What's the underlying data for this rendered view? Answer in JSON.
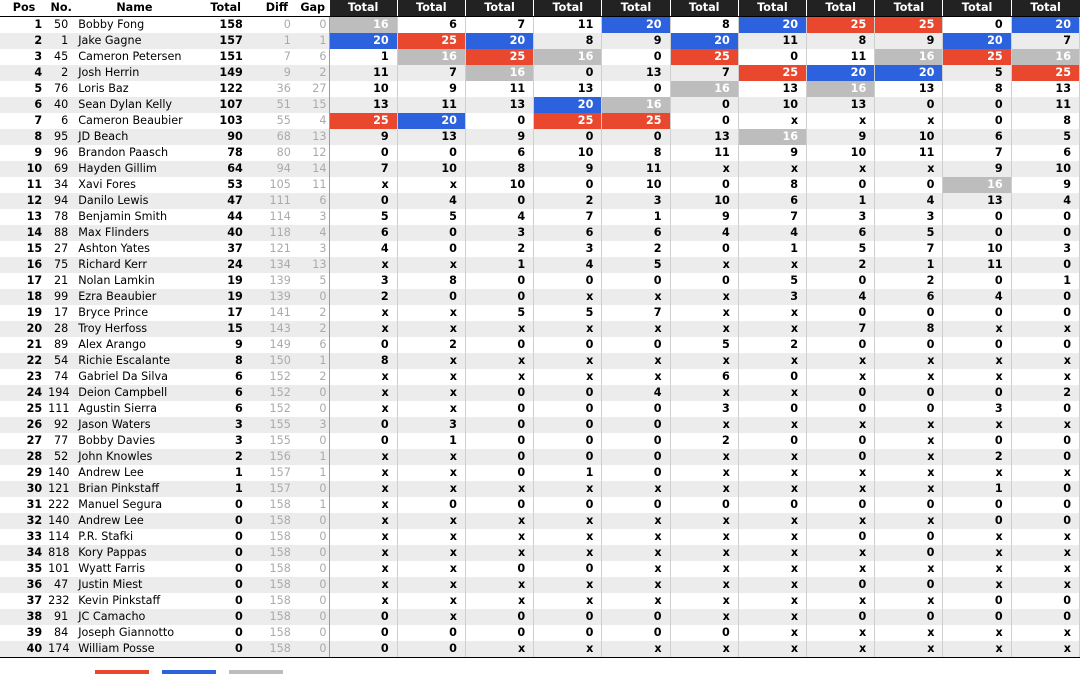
{
  "headers": {
    "pos": "Pos",
    "num": "No.",
    "name": "Name",
    "total": "Total",
    "diff": "Diff",
    "gap": "Gap",
    "rounds": [
      "Total",
      "Total",
      "Total",
      "Total",
      "Total",
      "Total",
      "Total",
      "Total",
      "Total",
      "Total",
      "Total"
    ]
  },
  "colors": {
    "first": "#e9482e",
    "second": "#2d62de",
    "third": "#bdbdbd"
  },
  "riders": [
    {
      "pos": "1",
      "num": "50",
      "name": "Bobby Fong",
      "total": "158",
      "diff": "0",
      "gap": "0",
      "rounds": [
        "16",
        "6",
        "7",
        "11",
        "20",
        "8",
        "20",
        "25",
        "25",
        "0",
        "20"
      ]
    },
    {
      "pos": "2",
      "num": "1",
      "name": "Jake Gagne",
      "total": "157",
      "diff": "1",
      "gap": "1",
      "rounds": [
        "20",
        "25",
        "20",
        "8",
        "9",
        "20",
        "11",
        "8",
        "9",
        "20",
        "7"
      ]
    },
    {
      "pos": "3",
      "num": "45",
      "name": "Cameron Petersen",
      "total": "151",
      "diff": "7",
      "gap": "6",
      "rounds": [
        "1",
        "16",
        "25",
        "16",
        "0",
        "25",
        "0",
        "11",
        "16",
        "25",
        "16"
      ]
    },
    {
      "pos": "4",
      "num": "2",
      "name": "Josh Herrin",
      "total": "149",
      "diff": "9",
      "gap": "2",
      "rounds": [
        "11",
        "7",
        "16",
        "0",
        "13",
        "7",
        "25",
        "20",
        "20",
        "5",
        "25"
      ]
    },
    {
      "pos": "5",
      "num": "76",
      "name": "Loris Baz",
      "total": "122",
      "diff": "36",
      "gap": "27",
      "rounds": [
        "10",
        "9",
        "11",
        "13",
        "0",
        "16",
        "13",
        "16",
        "13",
        "8",
        "13"
      ]
    },
    {
      "pos": "6",
      "num": "40",
      "name": "Sean Dylan Kelly",
      "total": "107",
      "diff": "51",
      "gap": "15",
      "rounds": [
        "13",
        "11",
        "13",
        "20",
        "16",
        "0",
        "10",
        "13",
        "0",
        "0",
        "11"
      ]
    },
    {
      "pos": "7",
      "num": "6",
      "name": "Cameron Beaubier",
      "total": "103",
      "diff": "55",
      "gap": "4",
      "rounds": [
        "25",
        "20",
        "0",
        "25",
        "25",
        "0",
        "x",
        "x",
        "x",
        "0",
        "8"
      ]
    },
    {
      "pos": "8",
      "num": "95",
      "name": "JD Beach",
      "total": "90",
      "diff": "68",
      "gap": "13",
      "rounds": [
        "9",
        "13",
        "9",
        "0",
        "0",
        "13",
        "16",
        "9",
        "10",
        "6",
        "5"
      ]
    },
    {
      "pos": "9",
      "num": "96",
      "name": "Brandon Paasch",
      "total": "78",
      "diff": "80",
      "gap": "12",
      "rounds": [
        "0",
        "0",
        "6",
        "10",
        "8",
        "11",
        "9",
        "10",
        "11",
        "7",
        "6"
      ]
    },
    {
      "pos": "10",
      "num": "69",
      "name": "Hayden Gillim",
      "total": "64",
      "diff": "94",
      "gap": "14",
      "rounds": [
        "7",
        "10",
        "8",
        "9",
        "11",
        "x",
        "x",
        "x",
        "x",
        "9",
        "10"
      ]
    },
    {
      "pos": "11",
      "num": "34",
      "name": "Xavi Fores",
      "total": "53",
      "diff": "105",
      "gap": "11",
      "rounds": [
        "x",
        "x",
        "10",
        "0",
        "10",
        "0",
        "8",
        "0",
        "0",
        "16",
        "9"
      ]
    },
    {
      "pos": "12",
      "num": "94",
      "name": "Danilo Lewis",
      "total": "47",
      "diff": "111",
      "gap": "6",
      "rounds": [
        "0",
        "4",
        "0",
        "2",
        "3",
        "10",
        "6",
        "1",
        "4",
        "13",
        "4"
      ]
    },
    {
      "pos": "13",
      "num": "78",
      "name": "Benjamin Smith",
      "total": "44",
      "diff": "114",
      "gap": "3",
      "rounds": [
        "5",
        "5",
        "4",
        "7",
        "1",
        "9",
        "7",
        "3",
        "3",
        "0",
        "0"
      ]
    },
    {
      "pos": "14",
      "num": "88",
      "name": "Max Flinders",
      "total": "40",
      "diff": "118",
      "gap": "4",
      "rounds": [
        "6",
        "0",
        "3",
        "6",
        "6",
        "4",
        "4",
        "6",
        "5",
        "0",
        "0"
      ]
    },
    {
      "pos": "15",
      "num": "27",
      "name": "Ashton Yates",
      "total": "37",
      "diff": "121",
      "gap": "3",
      "rounds": [
        "4",
        "0",
        "2",
        "3",
        "2",
        "0",
        "1",
        "5",
        "7",
        "10",
        "3"
      ]
    },
    {
      "pos": "16",
      "num": "75",
      "name": "Richard Kerr",
      "total": "24",
      "diff": "134",
      "gap": "13",
      "rounds": [
        "x",
        "x",
        "1",
        "4",
        "5",
        "x",
        "x",
        "2",
        "1",
        "11",
        "0"
      ]
    },
    {
      "pos": "17",
      "num": "21",
      "name": "Nolan Lamkin",
      "total": "19",
      "diff": "139",
      "gap": "5",
      "rounds": [
        "3",
        "8",
        "0",
        "0",
        "0",
        "0",
        "5",
        "0",
        "2",
        "0",
        "1"
      ]
    },
    {
      "pos": "18",
      "num": "99",
      "name": "Ezra Beaubier",
      "total": "19",
      "diff": "139",
      "gap": "0",
      "rounds": [
        "2",
        "0",
        "0",
        "x",
        "x",
        "x",
        "3",
        "4",
        "6",
        "4",
        "0"
      ]
    },
    {
      "pos": "19",
      "num": "17",
      "name": "Bryce Prince",
      "total": "17",
      "diff": "141",
      "gap": "2",
      "rounds": [
        "x",
        "x",
        "5",
        "5",
        "7",
        "x",
        "x",
        "0",
        "0",
        "0",
        "0"
      ]
    },
    {
      "pos": "20",
      "num": "28",
      "name": "Troy Herfoss",
      "total": "15",
      "diff": "143",
      "gap": "2",
      "rounds": [
        "x",
        "x",
        "x",
        "x",
        "x",
        "x",
        "x",
        "7",
        "8",
        "x",
        "x"
      ]
    },
    {
      "pos": "21",
      "num": "89",
      "name": "Alex Arango",
      "total": "9",
      "diff": "149",
      "gap": "6",
      "rounds": [
        "0",
        "2",
        "0",
        "0",
        "0",
        "5",
        "2",
        "0",
        "0",
        "0",
        "0"
      ]
    },
    {
      "pos": "22",
      "num": "54",
      "name": "Richie Escalante",
      "total": "8",
      "diff": "150",
      "gap": "1",
      "rounds": [
        "8",
        "x",
        "x",
        "x",
        "x",
        "x",
        "x",
        "x",
        "x",
        "x",
        "x"
      ]
    },
    {
      "pos": "23",
      "num": "74",
      "name": "Gabriel Da Silva",
      "total": "6",
      "diff": "152",
      "gap": "2",
      "rounds": [
        "x",
        "x",
        "x",
        "x",
        "x",
        "6",
        "0",
        "x",
        "x",
        "x",
        "x"
      ]
    },
    {
      "pos": "24",
      "num": "194",
      "name": "Deion Campbell",
      "total": "6",
      "diff": "152",
      "gap": "0",
      "rounds": [
        "x",
        "x",
        "0",
        "0",
        "4",
        "x",
        "x",
        "0",
        "0",
        "0",
        "2"
      ]
    },
    {
      "pos": "25",
      "num": "111",
      "name": "Agustin Sierra",
      "total": "6",
      "diff": "152",
      "gap": "0",
      "rounds": [
        "x",
        "x",
        "0",
        "0",
        "0",
        "3",
        "0",
        "0",
        "0",
        "3",
        "0"
      ]
    },
    {
      "pos": "26",
      "num": "92",
      "name": "Jason Waters",
      "total": "3",
      "diff": "155",
      "gap": "3",
      "rounds": [
        "0",
        "3",
        "0",
        "0",
        "0",
        "x",
        "x",
        "x",
        "x",
        "x",
        "x"
      ]
    },
    {
      "pos": "27",
      "num": "77",
      "name": "Bobby Davies",
      "total": "3",
      "diff": "155",
      "gap": "0",
      "rounds": [
        "0",
        "1",
        "0",
        "0",
        "0",
        "2",
        "0",
        "0",
        "x",
        "0",
        "0"
      ]
    },
    {
      "pos": "28",
      "num": "52",
      "name": "John Knowles",
      "total": "2",
      "diff": "156",
      "gap": "1",
      "rounds": [
        "x",
        "x",
        "0",
        "0",
        "0",
        "x",
        "x",
        "0",
        "x",
        "2",
        "0"
      ]
    },
    {
      "pos": "29",
      "num": "140",
      "name": "Andrew Lee",
      "total": "1",
      "diff": "157",
      "gap": "1",
      "rounds": [
        "x",
        "x",
        "0",
        "1",
        "0",
        "x",
        "x",
        "x",
        "x",
        "x",
        "x"
      ]
    },
    {
      "pos": "30",
      "num": "121",
      "name": "Brian Pinkstaff",
      "total": "1",
      "diff": "157",
      "gap": "0",
      "rounds": [
        "x",
        "x",
        "x",
        "x",
        "x",
        "x",
        "x",
        "x",
        "x",
        "1",
        "0"
      ]
    },
    {
      "pos": "31",
      "num": "222",
      "name": "Manuel Segura",
      "total": "0",
      "diff": "158",
      "gap": "1",
      "rounds": [
        "x",
        "0",
        "0",
        "0",
        "0",
        "0",
        "0",
        "0",
        "0",
        "0",
        "0"
      ]
    },
    {
      "pos": "32",
      "num": "140",
      "name": "Andrew Lee",
      "total": "0",
      "diff": "158",
      "gap": "0",
      "rounds": [
        "x",
        "x",
        "x",
        "x",
        "x",
        "x",
        "x",
        "x",
        "x",
        "0",
        "0"
      ]
    },
    {
      "pos": "33",
      "num": "114",
      "name": "P.R. Stafki",
      "total": "0",
      "diff": "158",
      "gap": "0",
      "rounds": [
        "x",
        "x",
        "x",
        "x",
        "x",
        "x",
        "x",
        "0",
        "0",
        "x",
        "x"
      ]
    },
    {
      "pos": "34",
      "num": "818",
      "name": "Kory Pappas",
      "total": "0",
      "diff": "158",
      "gap": "0",
      "rounds": [
        "x",
        "x",
        "x",
        "x",
        "x",
        "x",
        "x",
        "x",
        "0",
        "x",
        "x"
      ]
    },
    {
      "pos": "35",
      "num": "101",
      "name": "Wyatt Farris",
      "total": "0",
      "diff": "158",
      "gap": "0",
      "rounds": [
        "x",
        "x",
        "0",
        "0",
        "x",
        "x",
        "x",
        "x",
        "x",
        "x",
        "x"
      ]
    },
    {
      "pos": "36",
      "num": "47",
      "name": "Justin Miest",
      "total": "0",
      "diff": "158",
      "gap": "0",
      "rounds": [
        "x",
        "x",
        "x",
        "x",
        "x",
        "x",
        "x",
        "0",
        "0",
        "x",
        "x"
      ]
    },
    {
      "pos": "37",
      "num": "232",
      "name": "Kevin Pinkstaff",
      "total": "0",
      "diff": "158",
      "gap": "0",
      "rounds": [
        "x",
        "x",
        "x",
        "x",
        "x",
        "x",
        "x",
        "x",
        "x",
        "0",
        "0"
      ]
    },
    {
      "pos": "38",
      "num": "91",
      "name": "JC Camacho",
      "total": "0",
      "diff": "158",
      "gap": "0",
      "rounds": [
        "0",
        "x",
        "0",
        "0",
        "0",
        "x",
        "x",
        "0",
        "0",
        "0",
        "0"
      ]
    },
    {
      "pos": "39",
      "num": "84",
      "name": "Joseph Giannotto",
      "total": "0",
      "diff": "158",
      "gap": "0",
      "rounds": [
        "0",
        "0",
        "0",
        "0",
        "0",
        "0",
        "x",
        "x",
        "x",
        "x",
        "x"
      ]
    },
    {
      "pos": "40",
      "num": "174",
      "name": "William Posse",
      "total": "0",
      "diff": "158",
      "gap": "0",
      "rounds": [
        "0",
        "0",
        "x",
        "x",
        "x",
        "x",
        "x",
        "x",
        "x",
        "x",
        "x"
      ]
    }
  ]
}
